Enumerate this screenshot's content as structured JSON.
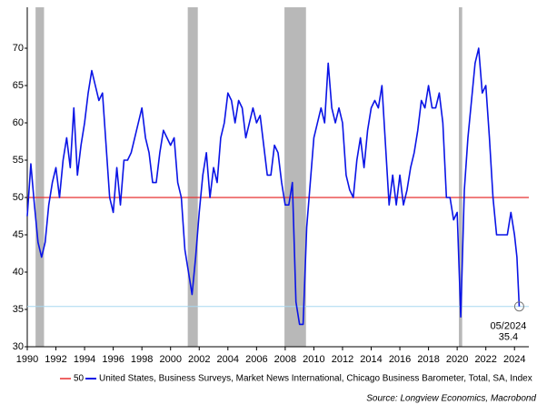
{
  "chart_data": {
    "type": "line",
    "series": [
      {
        "name": "United States, Business Surveys, Market News International, Chicago Business Barometer, Total, SA, Index",
        "color": "#0a14e6",
        "x": [
          1990,
          1990.25,
          1990.5,
          1990.75,
          1991,
          1991.25,
          1991.5,
          1991.75,
          1992,
          1992.25,
          1992.5,
          1992.75,
          1993,
          1993.25,
          1993.5,
          1993.75,
          1994,
          1994.25,
          1994.5,
          1994.75,
          1995,
          1995.25,
          1995.5,
          1995.75,
          1996,
          1996.25,
          1996.5,
          1996.75,
          1997,
          1997.25,
          1997.5,
          1997.75,
          1998,
          1998.25,
          1998.5,
          1998.75,
          1999,
          1999.25,
          1999.5,
          1999.75,
          2000,
          2000.25,
          2000.5,
          2000.75,
          2001,
          2001.25,
          2001.5,
          2001.75,
          2002,
          2002.25,
          2002.5,
          2002.75,
          2003,
          2003.25,
          2003.5,
          2003.75,
          2004,
          2004.25,
          2004.5,
          2004.75,
          2005,
          2005.25,
          2005.5,
          2005.75,
          2006,
          2006.25,
          2006.5,
          2006.75,
          2007,
          2007.25,
          2007.5,
          2007.75,
          2008,
          2008.25,
          2008.5,
          2008.75,
          2009,
          2009.25,
          2009.5,
          2009.75,
          2010,
          2010.25,
          2010.5,
          2010.75,
          2011,
          2011.25,
          2011.5,
          2011.75,
          2012,
          2012.25,
          2012.5,
          2012.75,
          2013,
          2013.25,
          2013.5,
          2013.75,
          2014,
          2014.25,
          2014.5,
          2014.75,
          2015,
          2015.25,
          2015.5,
          2015.75,
          2016,
          2016.25,
          2016.5,
          2016.75,
          2017,
          2017.25,
          2017.5,
          2017.75,
          2018,
          2018.25,
          2018.5,
          2018.75,
          2019,
          2019.25,
          2019.5,
          2019.75,
          2020,
          2020.25,
          2020.5,
          2020.75,
          2021,
          2021.25,
          2021.5,
          2021.75,
          2022,
          2022.25,
          2022.5,
          2022.75,
          2023,
          2023.25,
          2023.5,
          2023.75,
          2024,
          2024.17,
          2024.33
        ],
        "values": [
          47.5,
          54.5,
          49,
          44,
          42,
          44,
          49,
          52,
          54,
          50,
          55,
          58,
          54,
          62,
          53,
          57,
          60,
          64,
          67,
          65,
          63,
          64,
          57,
          50,
          48,
          54,
          49,
          55,
          55,
          56,
          58,
          60,
          62,
          58,
          56,
          52,
          52,
          56,
          59,
          58,
          57,
          58,
          52,
          50,
          43,
          40,
          37,
          42,
          48,
          53,
          56,
          50,
          54,
          52,
          58,
          60,
          64,
          63,
          60,
          63,
          62,
          58,
          60,
          62,
          60,
          61,
          57,
          53,
          53,
          57,
          56,
          52,
          49,
          49,
          52,
          36,
          33,
          33,
          46,
          52,
          58,
          60,
          62,
          60,
          68,
          62,
          60,
          62,
          60,
          53,
          51,
          50,
          55,
          58,
          54,
          59,
          62,
          63,
          62,
          65,
          57,
          49,
          53,
          49,
          53,
          49,
          51,
          54,
          56,
          59,
          63,
          62,
          65,
          62,
          62,
          64,
          60,
          50,
          50,
          47,
          48,
          34,
          51,
          58,
          63,
          68,
          70,
          64,
          65,
          58,
          50,
          45,
          45,
          45,
          45,
          48,
          45,
          42,
          35.4
        ]
      }
    ],
    "hline": {
      "name": "50",
      "value": 50,
      "color": "#e83030"
    },
    "recessions": [
      [
        1990.58,
        1991.17
      ],
      [
        2001.2,
        2001.9
      ],
      [
        2007.95,
        2009.45
      ],
      [
        2020.12,
        2020.35
      ]
    ],
    "annotation": {
      "label": "05/2024",
      "x": 2024.33,
      "y": 35.4
    },
    "xlim": [
      1990,
      2025
    ],
    "ylim": [
      30,
      75
    ],
    "xticks": [
      1990,
      1992,
      1994,
      1996,
      1998,
      2000,
      2002,
      2004,
      2006,
      2008,
      2010,
      2012,
      2014,
      2016,
      2018,
      2020,
      2022,
      2024
    ],
    "yticks": [
      30,
      35,
      40,
      45,
      50,
      55,
      60,
      65,
      70
    ],
    "source": "Source: Longview Economics, Macrobond"
  }
}
